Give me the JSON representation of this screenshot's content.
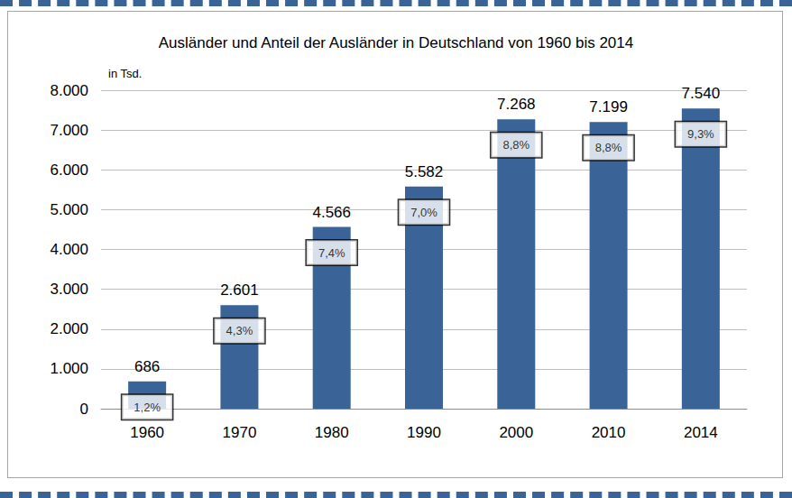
{
  "chart_data": {
    "type": "bar",
    "title": "Ausländer und Anteil der Ausländer in Deutschland von 1960 bis 2014",
    "ylabel": "in Tsd.",
    "categories": [
      "1960",
      "1970",
      "1980",
      "1990",
      "2000",
      "2010",
      "2014"
    ],
    "values": [
      686,
      2601,
      4566,
      5582,
      7268,
      7199,
      7540
    ],
    "value_labels": [
      "686",
      "2.601",
      "4.566",
      "5.582",
      "7.268",
      "7.199",
      "7.540"
    ],
    "shares": [
      1.2,
      4.3,
      7.4,
      7.0,
      8.8,
      8.8,
      9.3
    ],
    "share_labels": [
      "1,2%",
      "4,3%",
      "7,4%",
      "7,0%",
      "8,8%",
      "8,8%",
      "9,3%"
    ],
    "color": "#3a6398",
    "ylim": [
      0,
      8000
    ],
    "yticks": [
      {
        "value": 0,
        "label": "0"
      },
      {
        "value": 1000,
        "label": "1.000"
      },
      {
        "value": 2000,
        "label": "2.000"
      },
      {
        "value": 3000,
        "label": "3.000"
      },
      {
        "value": 4000,
        "label": "4.000"
      },
      {
        "value": 5000,
        "label": "5.000"
      },
      {
        "value": 6000,
        "label": "6.000"
      },
      {
        "value": 7000,
        "label": "7.000"
      },
      {
        "value": 8000,
        "label": "8.000"
      }
    ],
    "grid": true,
    "data_labels": true
  }
}
